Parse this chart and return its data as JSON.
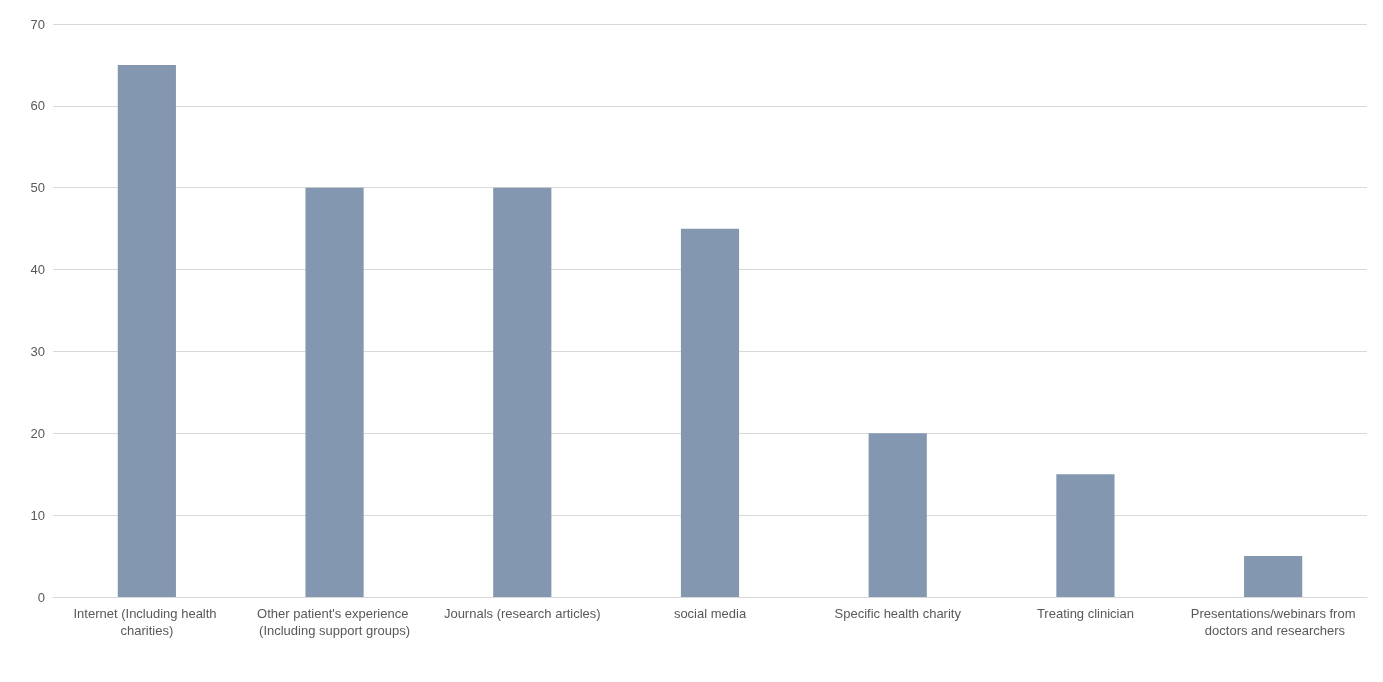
{
  "chart_data": {
    "type": "bar",
    "categories": [
      "Internet (Including health charities)",
      "Other patient's experience (Including support groups)",
      "Journals (research articles)",
      "social media",
      "Specific health charity",
      "Treating clinician",
      "Presentations/webinars from doctors and researchers"
    ],
    "values": [
      65,
      50,
      50,
      45,
      20,
      15,
      5
    ],
    "color": "#8497b0",
    "ylim": [
      0,
      70
    ],
    "yticks": [
      0,
      10,
      20,
      30,
      40,
      50,
      60,
      70
    ],
    "grid": "y"
  }
}
